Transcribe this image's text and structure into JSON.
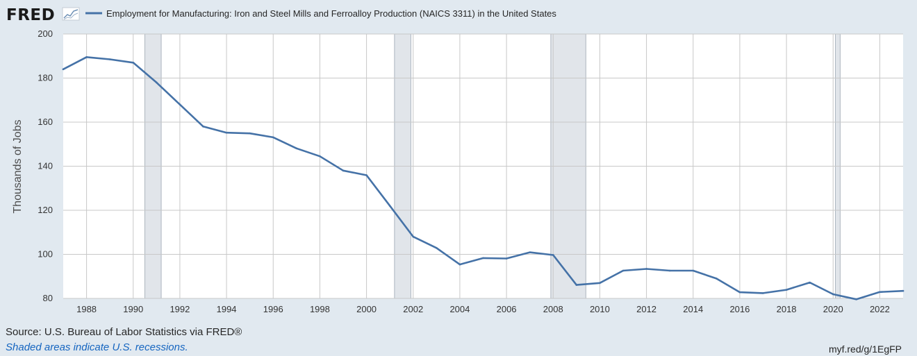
{
  "header": {
    "logo_text": "FRED",
    "logo_icon": "fred-sparkline-icon",
    "series_title": "Employment for Manufacturing: Iron and Steel Mills and Ferroalloy Production (NAICS 3311) in the United States",
    "series_color": "#4572a7"
  },
  "footer": {
    "source": "Source: U.S. Bureau of Labor Statistics via FRED®",
    "shaded_note": "Shaded areas indicate U.S. recessions.",
    "short_url": "myf.red/g/1EgFP"
  },
  "colors": {
    "background": "#e1e9f0",
    "plot_background": "#ffffff",
    "grid": "#c8c8c8",
    "recession": "#e1e5ea",
    "line": "#4572a7"
  },
  "chart_data": {
    "type": "line",
    "title": "Employment for Manufacturing: Iron and Steel Mills and Ferroalloy Production (NAICS 3311) in the United States",
    "xlabel": "",
    "ylabel": "Thousands of Jobs",
    "xlim": [
      1987,
      2023
    ],
    "ylim": [
      80,
      200
    ],
    "grid": true,
    "legend": "top-left",
    "x_tick_labels": [
      "1988",
      "1990",
      "1992",
      "1994",
      "1996",
      "1998",
      "2000",
      "2002",
      "2004",
      "2006",
      "2008",
      "2010",
      "2012",
      "2014",
      "2016",
      "2018",
      "2020",
      "2022"
    ],
    "y_tick_labels": [
      "80",
      "100",
      "120",
      "140",
      "160",
      "180",
      "200"
    ],
    "recessions": [
      [
        1990.5,
        1991.2
      ],
      [
        2001.2,
        2001.9
      ],
      [
        2007.9,
        2009.4
      ],
      [
        2020.1,
        2020.3
      ]
    ],
    "series": [
      {
        "name": "Employment for Manufacturing: Iron and Steel Mills and Ferroalloy Production (NAICS 3311) in the United States",
        "color": "#4572a7",
        "x": [
          1987,
          1988,
          1989,
          1990,
          1991,
          1992,
          1993,
          1994,
          1995,
          1996,
          1997,
          1998,
          1999,
          2000,
          2001,
          2002,
          2003,
          2004,
          2005,
          2006,
          2007,
          2008,
          2009,
          2010,
          2011,
          2012,
          2013,
          2014,
          2015,
          2016,
          2017,
          2018,
          2019,
          2020,
          2021,
          2022,
          2023
        ],
        "values": [
          184.0,
          189.5,
          188.5,
          187.0,
          178.0,
          168.0,
          158.0,
          155.2,
          154.9,
          153.1,
          148.1,
          144.5,
          138.0,
          135.9,
          122.0,
          108.0,
          102.9,
          95.4,
          98.3,
          98.1,
          100.9,
          99.7,
          86.1,
          87.0,
          92.6,
          93.4,
          92.6,
          92.6,
          89.0,
          82.8,
          82.4,
          83.9,
          87.2,
          81.9,
          79.6,
          82.9,
          83.4
        ]
      }
    ]
  }
}
